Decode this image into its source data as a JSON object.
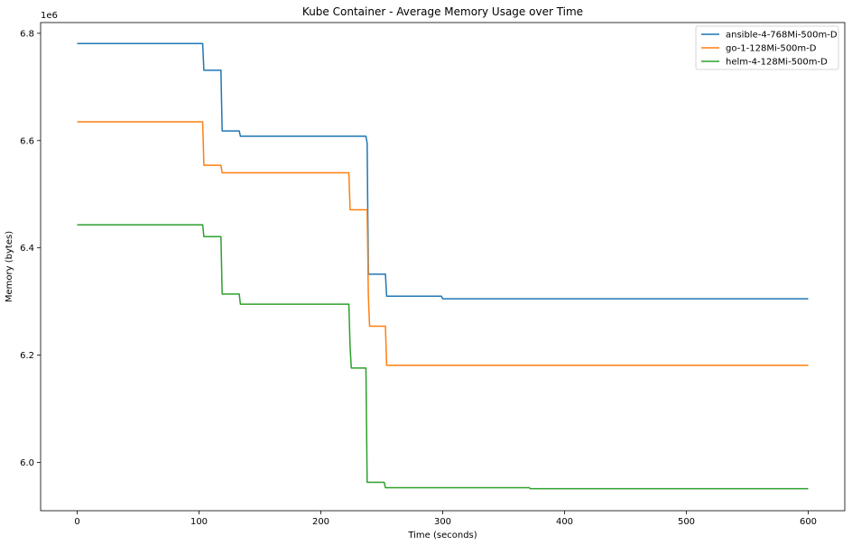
{
  "chart_data": {
    "type": "line",
    "title": "Kube Container - Average Memory Usage over Time",
    "xlabel": "Time (seconds)",
    "ylabel": "Memory (bytes)",
    "y_offset_text": "1e6",
    "xlim": [
      -30,
      630
    ],
    "ylim": [
      5.91,
      6.82
    ],
    "x_ticks": [
      0,
      100,
      200,
      300,
      400,
      500,
      600
    ],
    "y_ticks": [
      6.0,
      6.2,
      6.4,
      6.6,
      6.8
    ],
    "y_tick_labels": [
      "6.0",
      "6.2",
      "6.4",
      "6.6",
      "6.8"
    ],
    "grid": false,
    "legend_position": "top-right",
    "series": [
      {
        "name": "ansible-4-768Mi-500m-D",
        "color": "#1f77b4",
        "x": [
          0,
          103,
          104,
          118,
          119,
          133,
          134,
          237,
          238,
          239,
          253,
          254,
          299,
          300,
          600
        ],
        "y": [
          6.781,
          6.781,
          6.731,
          6.731,
          6.618,
          6.618,
          6.608,
          6.608,
          6.595,
          6.351,
          6.351,
          6.31,
          6.31,
          6.305,
          6.305
        ]
      },
      {
        "name": "go-1-128Mi-500m-D",
        "color": "#ff7f0e",
        "x": [
          0,
          103,
          104,
          118,
          119,
          223,
          224,
          238,
          239,
          240,
          253,
          254,
          600
        ],
        "y": [
          6.635,
          6.635,
          6.554,
          6.554,
          6.54,
          6.54,
          6.471,
          6.471,
          6.31,
          6.254,
          6.254,
          6.181,
          6.181
        ]
      },
      {
        "name": "helm-4-128Mi-500m-D",
        "color": "#2ca02c",
        "x": [
          0,
          103,
          104,
          118,
          119,
          133,
          134,
          223,
          224,
          225,
          237,
          238,
          252,
          253,
          371,
          372,
          600
        ],
        "y": [
          6.443,
          6.443,
          6.421,
          6.421,
          6.314,
          6.314,
          6.295,
          6.295,
          6.215,
          6.176,
          6.176,
          5.963,
          5.963,
          5.953,
          5.953,
          5.951,
          5.951
        ]
      }
    ]
  }
}
